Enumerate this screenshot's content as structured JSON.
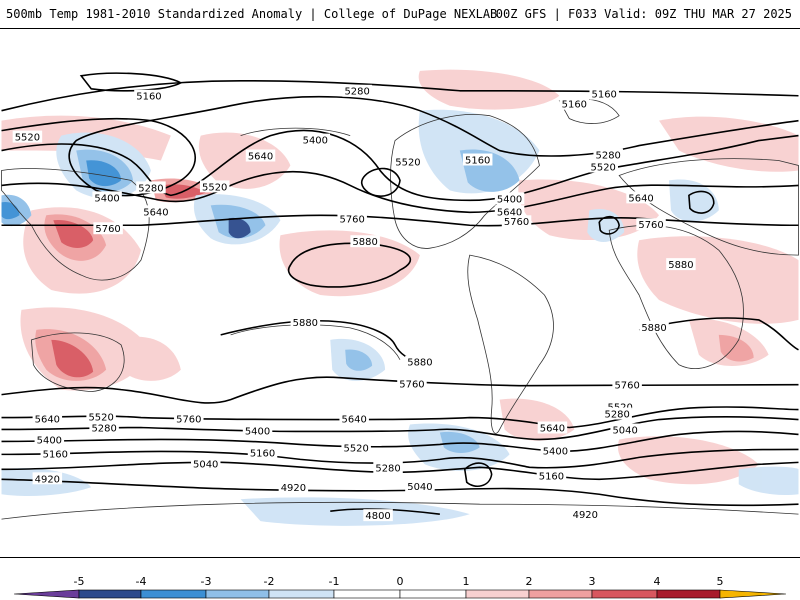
{
  "header": {
    "title": "500mb Temp 1981-2010 Standardized Anomaly | College of DuPage NEXLAB",
    "run_info": "00Z GFS | F033 Valid: 09Z THU MAR 27 2025"
  },
  "colors": {
    "neg5": "#6a3d9a",
    "neg4": "#2c4a8c",
    "neg3": "#3b8fd4",
    "neg2": "#8fbfe8",
    "neg1": "#cfe3f5",
    "zero": "#ffffff",
    "pos1": "#f8d0d0",
    "pos2": "#efa0a0",
    "pos3": "#d8575f",
    "pos4": "#a81b2c",
    "pos5": "#f5b500"
  },
  "colorbar": {
    "ticks": [
      "-5",
      "-4",
      "-3",
      "-2",
      "-1",
      "0",
      "1",
      "2",
      "3",
      "4",
      "5"
    ]
  },
  "contour_labels": [
    {
      "text": "5160"
    },
    {
      "text": "5280"
    },
    {
      "text": "5160"
    },
    {
      "text": "5160"
    },
    {
      "text": "5520"
    },
    {
      "text": "5400"
    },
    {
      "text": "5640"
    },
    {
      "text": "5520"
    },
    {
      "text": "5160"
    },
    {
      "text": "5280"
    },
    {
      "text": "5520"
    },
    {
      "text": "5280"
    },
    {
      "text": "5520"
    },
    {
      "text": "5400"
    },
    {
      "text": "5400"
    },
    {
      "text": "5640"
    },
    {
      "text": "5640"
    },
    {
      "text": "5760"
    },
    {
      "text": "5640"
    },
    {
      "text": "5760"
    },
    {
      "text": "5760"
    },
    {
      "text": "5760"
    },
    {
      "text": "5880"
    },
    {
      "text": "5880"
    },
    {
      "text": "5880"
    },
    {
      "text": "5880"
    },
    {
      "text": "5880"
    },
    {
      "text": "5760"
    },
    {
      "text": "5760"
    },
    {
      "text": "5640"
    },
    {
      "text": "5520"
    },
    {
      "text": "5280"
    },
    {
      "text": "5400"
    },
    {
      "text": "5160"
    },
    {
      "text": "5760"
    },
    {
      "text": "5640"
    },
    {
      "text": "5400"
    },
    {
      "text": "5520"
    },
    {
      "text": "5160"
    },
    {
      "text": "5280"
    },
    {
      "text": "5040"
    },
    {
      "text": "4920"
    },
    {
      "text": "4920"
    },
    {
      "text": "5040"
    },
    {
      "text": "4800"
    },
    {
      "text": "5640"
    },
    {
      "text": "5520"
    },
    {
      "text": "5280"
    },
    {
      "text": "5040"
    },
    {
      "text": "5400"
    },
    {
      "text": "5160"
    },
    {
      "text": "4920"
    }
  ]
}
